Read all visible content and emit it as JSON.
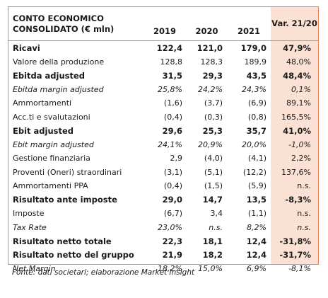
{
  "header": {
    "label": "CONTO ECONOMICO CONSOLIDATO (€ mln)",
    "years": [
      "2019",
      "2020",
      "2021"
    ],
    "var_label": "Var. 21/20"
  },
  "rows": [
    {
      "label": "Ricavi",
      "style": "bold",
      "values": [
        "122,4",
        "121,0",
        "179,0"
      ],
      "var": "47,9%"
    },
    {
      "label": "Valore della produzione",
      "style": "normal",
      "values": [
        "128,8",
        "128,3",
        "189,9"
      ],
      "var": "48,0%"
    },
    {
      "label": "Ebitda adjusted",
      "style": "bold",
      "values": [
        "31,5",
        "29,3",
        "43,5"
      ],
      "var": "48,4%"
    },
    {
      "label": "Ebitda margin adjusted",
      "style": "italic",
      "values": [
        "25,8%",
        "24,2%",
        "24,3%"
      ],
      "var": "0,1%"
    },
    {
      "label": "Ammortamenti",
      "style": "normal",
      "values": [
        "(1,6)",
        "(3,7)",
        "(6,9)"
      ],
      "var": "89,1%"
    },
    {
      "label": "Acc.ti e svalutazioni",
      "style": "normal",
      "values": [
        "(0,4)",
        "(0,3)",
        "(0,8)"
      ],
      "var": "165,5%"
    },
    {
      "label": "Ebit adjusted",
      "style": "bold",
      "values": [
        "29,6",
        "25,3",
        "35,7"
      ],
      "var": "41,0%"
    },
    {
      "label": "Ebit margin adjusted",
      "style": "italic",
      "values": [
        "24,1%",
        "20,9%",
        "20,0%"
      ],
      "var": "-1,0%"
    },
    {
      "label": "Gestione finanziaria",
      "style": "normal",
      "values": [
        "2,9",
        "(4,0)",
        "(4,1)"
      ],
      "var": "2,2%"
    },
    {
      "label": "Proventi (Oneri) straordinari",
      "style": "normal",
      "values": [
        "(3,1)",
        "(5,1)",
        "(12,2)"
      ],
      "var": "137,6%"
    },
    {
      "label": "Ammortamenti PPA",
      "style": "normal",
      "values": [
        "(0,4)",
        "(1,5)",
        "(5,9)"
      ],
      "var": "n.s."
    },
    {
      "label": "Risultato ante imposte",
      "style": "bold",
      "values": [
        "29,0",
        "14,7",
        "13,5"
      ],
      "var": "-8,3%"
    },
    {
      "label": "Imposte",
      "style": "normal",
      "values": [
        "(6,7)",
        "3,4",
        "(1,1)"
      ],
      "var": "n.s."
    },
    {
      "label": "Tax Rate",
      "style": "italic",
      "values": [
        "23,0%",
        "n.s.",
        "8,2%"
      ],
      "var": "n.s."
    },
    {
      "label": "Risultato netto totale",
      "style": "bold",
      "values": [
        "22,3",
        "18,1",
        "12,4"
      ],
      "var": "-31,8%"
    },
    {
      "label": "Risultato netto del gruppo",
      "style": "bold",
      "values": [
        "21,9",
        "18,2",
        "12,4"
      ],
      "var": "-31,7%"
    },
    {
      "label": "Net Margin",
      "style": "italic",
      "values": [
        "18,2%",
        "15,0%",
        "6,9%"
      ],
      "var": "-8,1%"
    }
  ],
  "caption": "Fonte: dati societari; elaborazione Market Insight",
  "colors": {
    "border": "#e98258",
    "var_fill": "#fbe1d3"
  }
}
